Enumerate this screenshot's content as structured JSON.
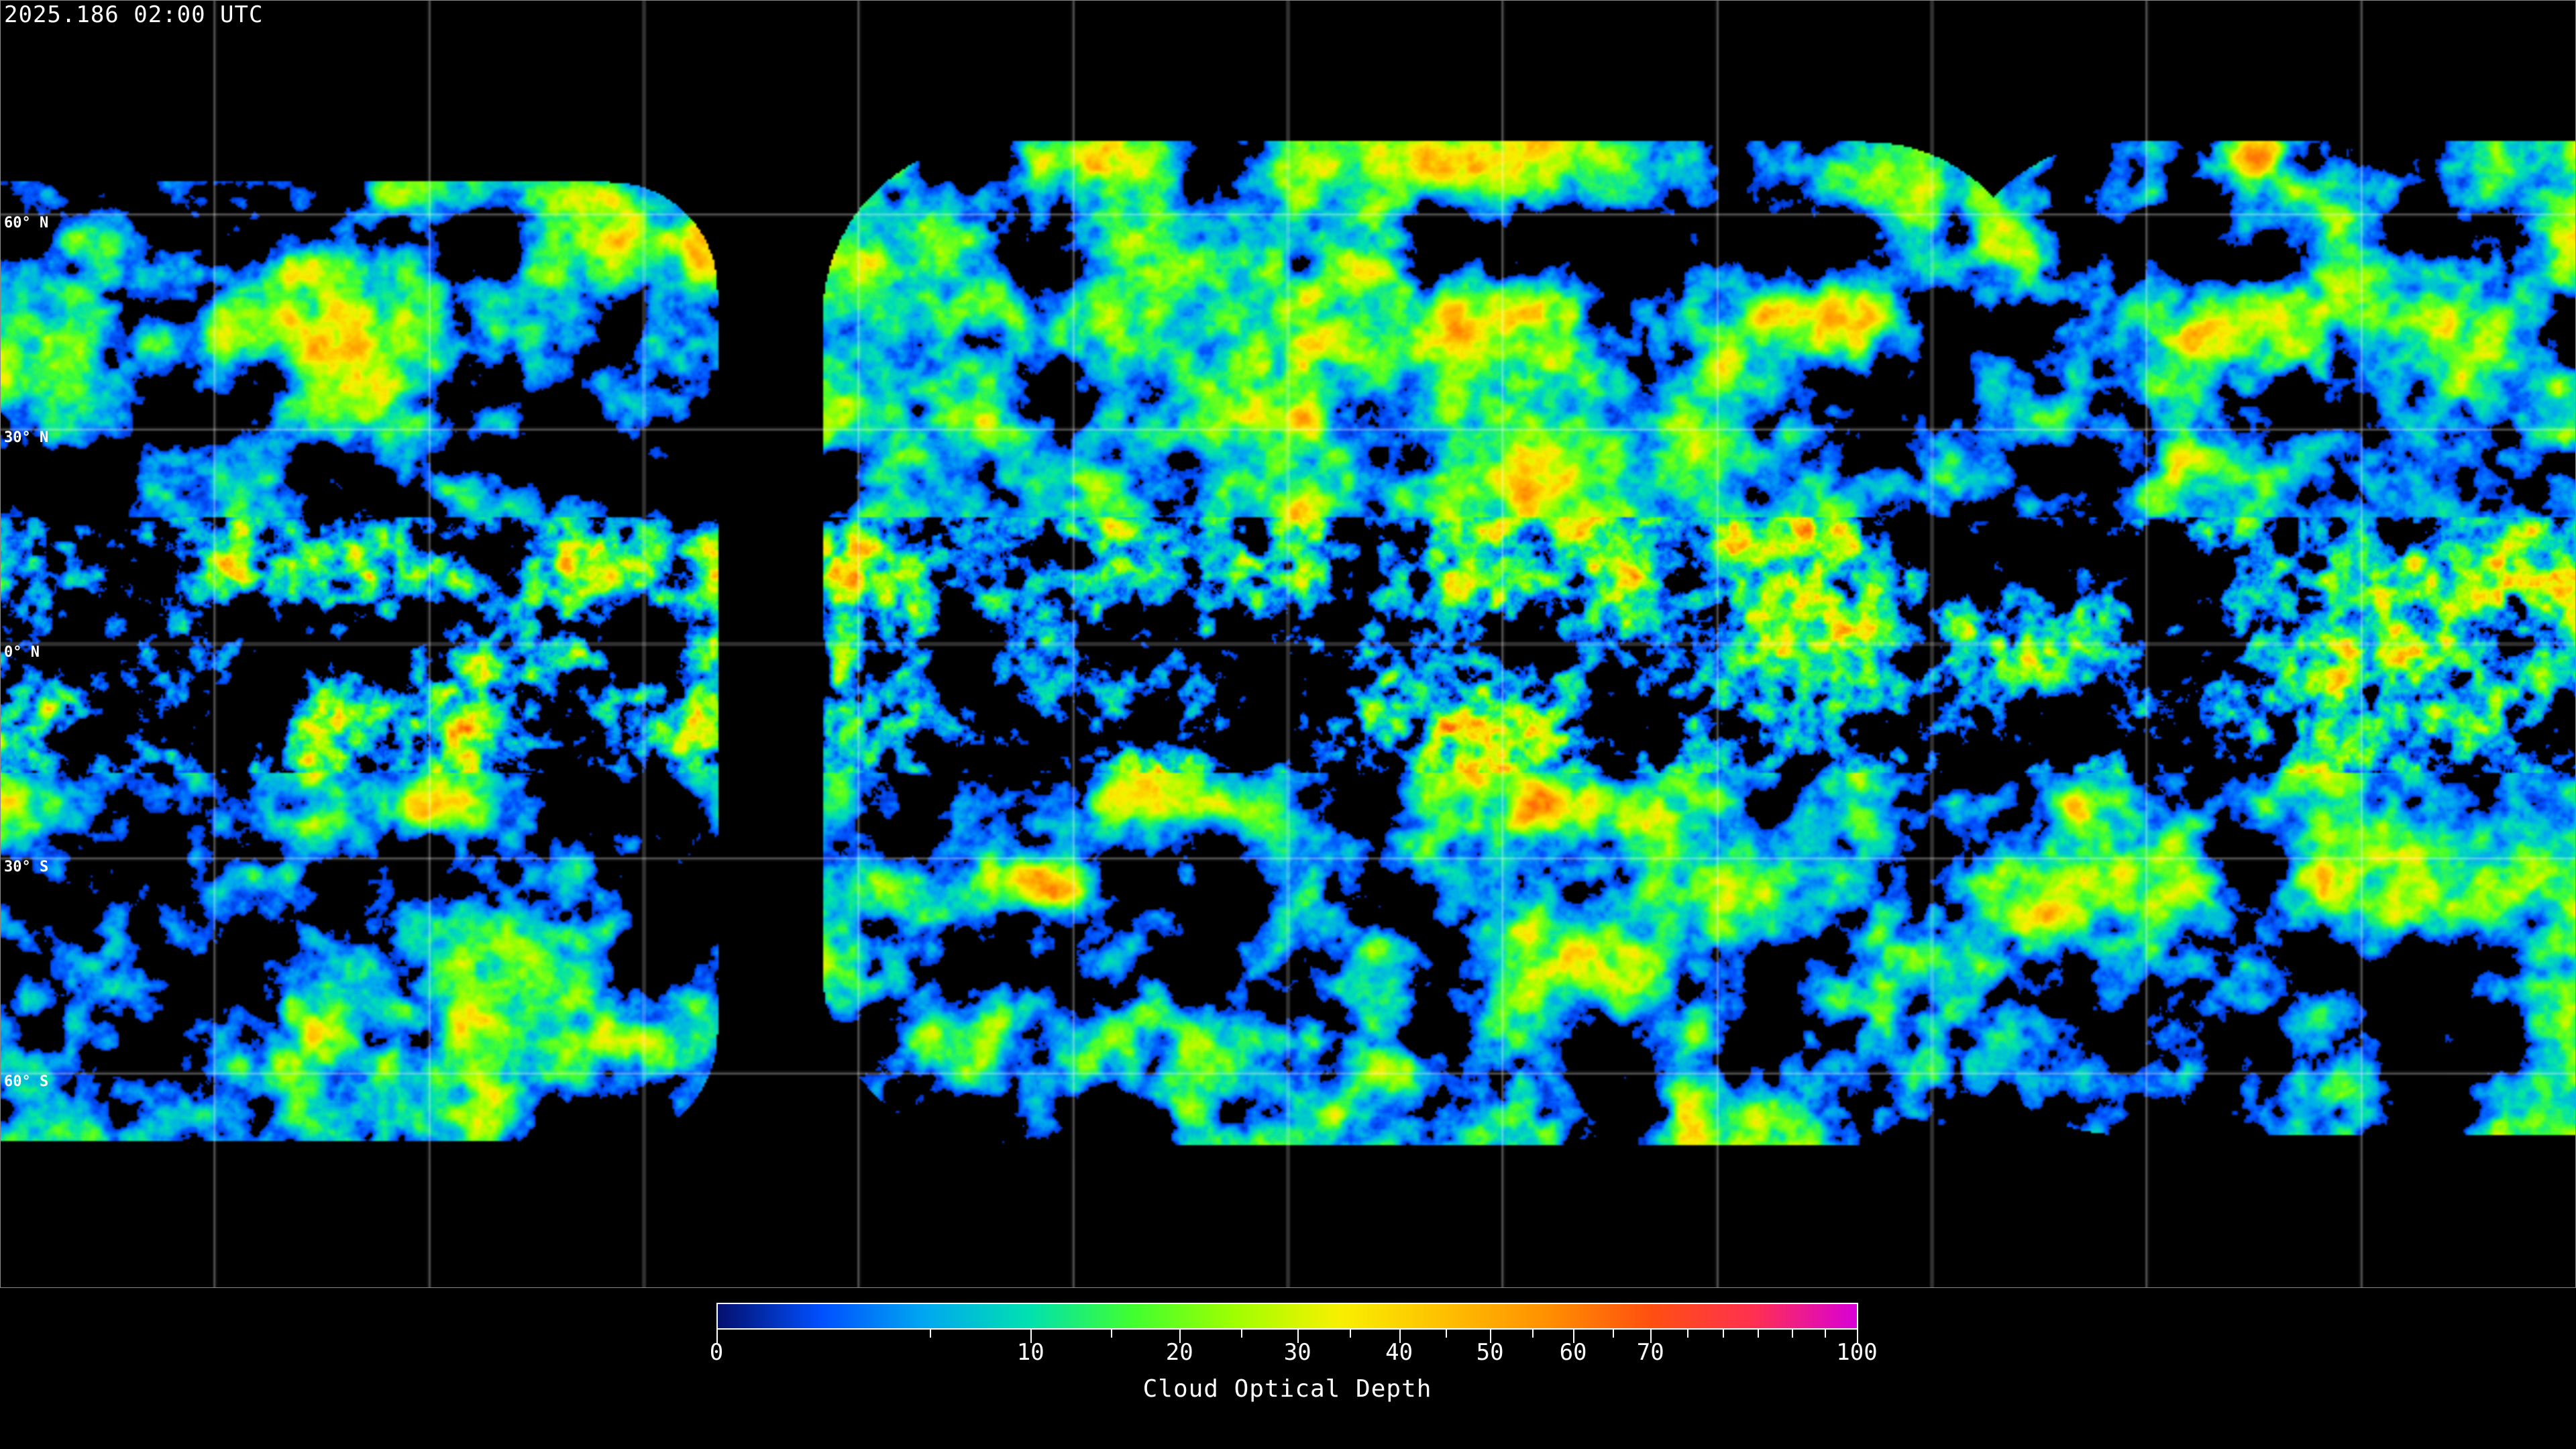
{
  "title": "2025.186 02:00 UTC",
  "latitude_labels": [
    "60° N",
    "30° N",
    "0° N",
    "30° S",
    "60° S"
  ],
  "colorbar": {
    "label": "Cloud Optical Depth",
    "range": [
      0,
      100
    ],
    "major_ticks": [
      "0",
      "10",
      "20",
      "30",
      "40",
      "50",
      "60",
      "70",
      "100"
    ],
    "colormap": [
      "#04106e",
      "#0050ff",
      "#00a8f0",
      "#00e0b0",
      "#40ff30",
      "#a0ff00",
      "#f8f000",
      "#ffc000",
      "#ff9000",
      "#ff5010",
      "#ff3050",
      "#d800d8"
    ]
  },
  "gridlines": {
    "spacing_degrees": 30,
    "color": "#ffffff"
  },
  "colors": {
    "background": "#000000",
    "coastline": "#ffffff"
  }
}
